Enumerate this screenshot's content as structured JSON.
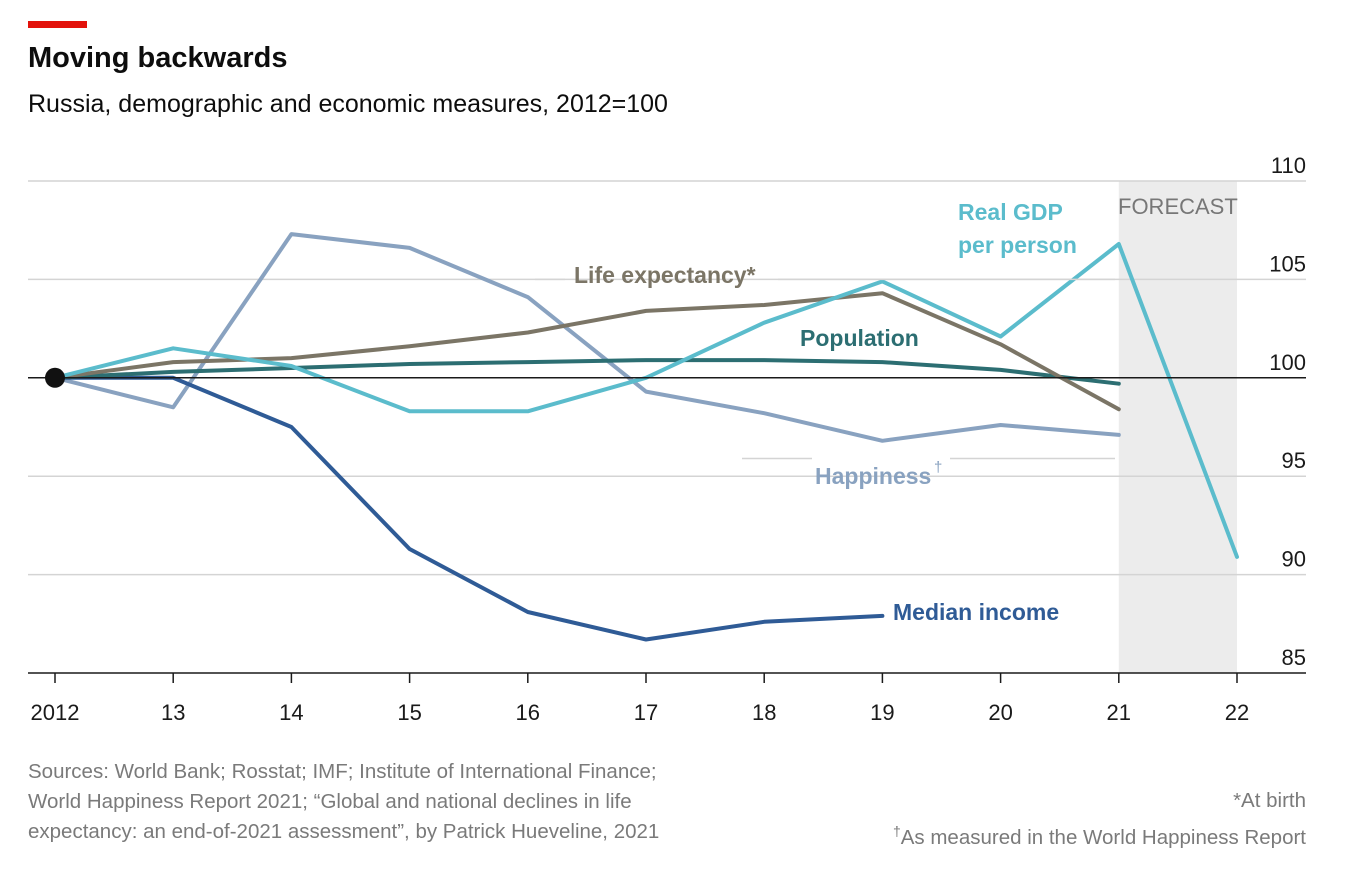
{
  "header": {
    "title": "Moving backwards",
    "subtitle": "Russia, demographic and economic measures, 2012=100"
  },
  "chart_data": {
    "type": "line",
    "title": "Moving backwards",
    "subtitle": "Russia, demographic and economic measures, 2012=100",
    "x": [
      2012,
      2013,
      2014,
      2015,
      2016,
      2017,
      2018,
      2019,
      2020,
      2021,
      2022
    ],
    "x_tick_labels": [
      "2012",
      "13",
      "14",
      "15",
      "16",
      "17",
      "18",
      "19",
      "20",
      "21",
      "22"
    ],
    "ylim": [
      85,
      110
    ],
    "y_ticks": [
      85,
      90,
      95,
      100,
      105,
      110
    ],
    "y_axis_side": "right",
    "forecast": {
      "label": "FORECAST",
      "from": 2021,
      "to": 2022
    },
    "baseline": 100,
    "series": [
      {
        "name": "Life expectancy*",
        "color": "#7b7566",
        "values": [
          100,
          100.8,
          101,
          101.6,
          102.3,
          103.4,
          103.7,
          104.3,
          101.7,
          98.4,
          null
        ]
      },
      {
        "name": "Population",
        "color": "#2c6e72",
        "values": [
          100,
          100.3,
          100.5,
          100.7,
          100.8,
          100.9,
          100.9,
          100.8,
          100.4,
          99.7,
          null
        ]
      },
      {
        "name": "Real GDP per person",
        "color": "#5bbccc",
        "values": [
          100,
          101.5,
          100.6,
          98.3,
          98.3,
          100,
          102.8,
          104.9,
          102.1,
          106.8,
          90.9
        ]
      },
      {
        "name": "Happiness†",
        "color": "#89a2c0",
        "values": [
          100,
          98.5,
          107.3,
          106.6,
          104.1,
          99.3,
          98.2,
          96.8,
          97.6,
          97.1,
          null
        ]
      },
      {
        "name": "Median income",
        "color": "#2f5b96",
        "values": [
          100,
          100,
          97.5,
          91.3,
          88.1,
          86.7,
          87.6,
          87.9,
          null,
          null,
          null
        ]
      }
    ],
    "labels": {
      "life_expectancy": "Life expectancy*",
      "population": "Population",
      "gdp_line1": "Real GDP",
      "gdp_line2": "per person",
      "happiness": "Happiness",
      "happiness_mark": "†",
      "median_income": "Median income"
    }
  },
  "footer": {
    "sources": [
      "Sources: World Bank; Rosstat; IMF; Institute of International Finance;",
      "World Happiness Report 2021; “Global and national declines in life",
      "expectancy: an end-of-2021 assessment”, by Patrick Hueveline, 2021"
    ],
    "note1": "*At birth",
    "note2_mark": "†",
    "note2": "As measured in the World Happiness Report"
  }
}
